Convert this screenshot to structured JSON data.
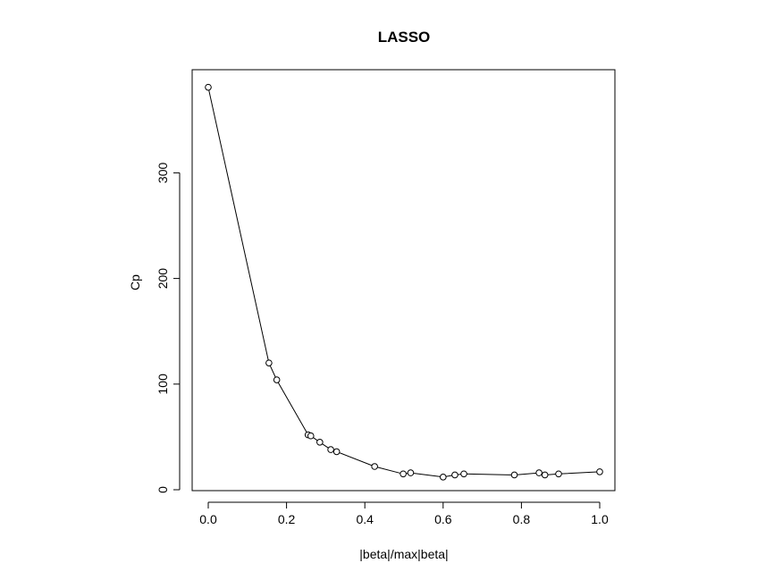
{
  "chart_data": {
    "type": "line",
    "title": "LASSO",
    "xlabel": "|beta|/max|beta|",
    "ylabel": "Cp",
    "xlim": [
      0,
      1
    ],
    "ylim": [
      0,
      380
    ],
    "x_ticks": [
      "0.0",
      "0.2",
      "0.4",
      "0.6",
      "0.8",
      "1.0"
    ],
    "y_ticks": [
      "0",
      "100",
      "200",
      "300"
    ],
    "grid": false,
    "markers": "open-circle",
    "series": [
      {
        "x": [
          0.0,
          0.155,
          0.175,
          0.255,
          0.262,
          0.285,
          0.313,
          0.328,
          0.425,
          0.498,
          0.517,
          0.6,
          0.63,
          0.653,
          0.782,
          0.845,
          0.86,
          0.895,
          1.0
        ],
        "y": [
          381,
          120,
          104,
          52,
          51,
          45,
          38,
          36,
          22,
          15,
          16,
          12,
          14,
          15,
          14,
          16,
          14,
          15,
          17
        ]
      }
    ]
  }
}
